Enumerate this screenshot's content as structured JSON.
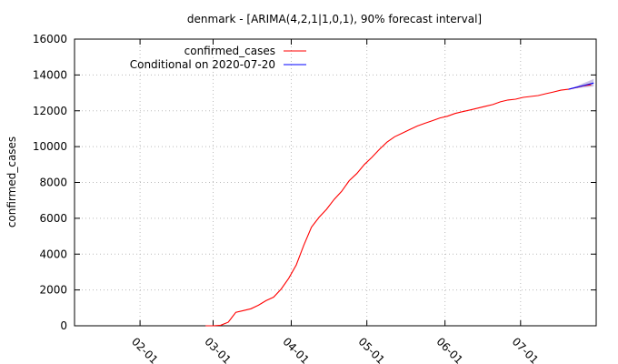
{
  "chart_data": {
    "type": "line",
    "title": "denmark -  [ARIMA(4,2,1|1,0,1), 90% forecast interval]",
    "xlabel": "",
    "ylabel": "confirmed_cases",
    "ylim": [
      0,
      16000
    ],
    "xlim": [
      "2020-01-06",
      "2020-07-31"
    ],
    "y_ticks": [
      0,
      2000,
      4000,
      6000,
      8000,
      10000,
      12000,
      14000,
      16000
    ],
    "x_ticks": [
      {
        "date": "2020-02-01",
        "label": "02-01"
      },
      {
        "date": "2020-03-01",
        "label": "03-01"
      },
      {
        "date": "2020-04-01",
        "label": "04-01"
      },
      {
        "date": "2020-05-01",
        "label": "05-01"
      },
      {
        "date": "2020-06-01",
        "label": "06-01"
      },
      {
        "date": "2020-07-01",
        "label": "07-01"
      }
    ],
    "grid": true,
    "legend_position": "top-left",
    "series": [
      {
        "name": "confirmed_cases",
        "color": "#ff0000",
        "points": [
          [
            "2020-02-27",
            0
          ],
          [
            "2020-03-01",
            0
          ],
          [
            "2020-03-04",
            30
          ],
          [
            "2020-03-07",
            200
          ],
          [
            "2020-03-10",
            750
          ],
          [
            "2020-03-13",
            850
          ],
          [
            "2020-03-16",
            950
          ],
          [
            "2020-03-19",
            1150
          ],
          [
            "2020-03-22",
            1400
          ],
          [
            "2020-03-25",
            1600
          ],
          [
            "2020-03-28",
            2050
          ],
          [
            "2020-03-31",
            2650
          ],
          [
            "2020-04-03",
            3400
          ],
          [
            "2020-04-06",
            4500
          ],
          [
            "2020-04-09",
            5500
          ],
          [
            "2020-04-12",
            6050
          ],
          [
            "2020-04-15",
            6500
          ],
          [
            "2020-04-18",
            7050
          ],
          [
            "2020-04-21",
            7500
          ],
          [
            "2020-04-24",
            8100
          ],
          [
            "2020-04-27",
            8500
          ],
          [
            "2020-04-30",
            9000
          ],
          [
            "2020-05-03",
            9400
          ],
          [
            "2020-05-06",
            9850
          ],
          [
            "2020-05-09",
            10250
          ],
          [
            "2020-05-12",
            10550
          ],
          [
            "2020-05-15",
            10750
          ],
          [
            "2020-05-18",
            10950
          ],
          [
            "2020-05-21",
            11150
          ],
          [
            "2020-05-24",
            11300
          ],
          [
            "2020-05-27",
            11450
          ],
          [
            "2020-05-30",
            11600
          ],
          [
            "2020-06-02",
            11700
          ],
          [
            "2020-06-05",
            11850
          ],
          [
            "2020-06-08",
            11950
          ],
          [
            "2020-06-11",
            12050
          ],
          [
            "2020-06-14",
            12150
          ],
          [
            "2020-06-17",
            12250
          ],
          [
            "2020-06-20",
            12350
          ],
          [
            "2020-06-23",
            12500
          ],
          [
            "2020-06-26",
            12600
          ],
          [
            "2020-06-29",
            12650
          ],
          [
            "2020-07-02",
            12750
          ],
          [
            "2020-07-05",
            12800
          ],
          [
            "2020-07-08",
            12850
          ],
          [
            "2020-07-11",
            12950
          ],
          [
            "2020-07-14",
            13050
          ],
          [
            "2020-07-17",
            13150
          ],
          [
            "2020-07-20",
            13200
          ],
          [
            "2020-07-23",
            13300
          ],
          [
            "2020-07-26",
            13400
          ],
          [
            "2020-07-29",
            13450
          ]
        ]
      },
      {
        "name": "Conditional on 2020-07-20",
        "color": "#0000ff",
        "points": [
          [
            "2020-07-20",
            13200
          ],
          [
            "2020-07-22",
            13270
          ],
          [
            "2020-07-24",
            13340
          ],
          [
            "2020-07-26",
            13410
          ],
          [
            "2020-07-28",
            13480
          ],
          [
            "2020-07-30",
            13550
          ]
        ],
        "interval": {
          "level": "90%",
          "color": "#b8b0de",
          "lower": [
            13200,
            13240,
            13270,
            13300,
            13330,
            13360
          ],
          "upper": [
            13200,
            13300,
            13420,
            13540,
            13660,
            13780
          ]
        }
      }
    ]
  }
}
